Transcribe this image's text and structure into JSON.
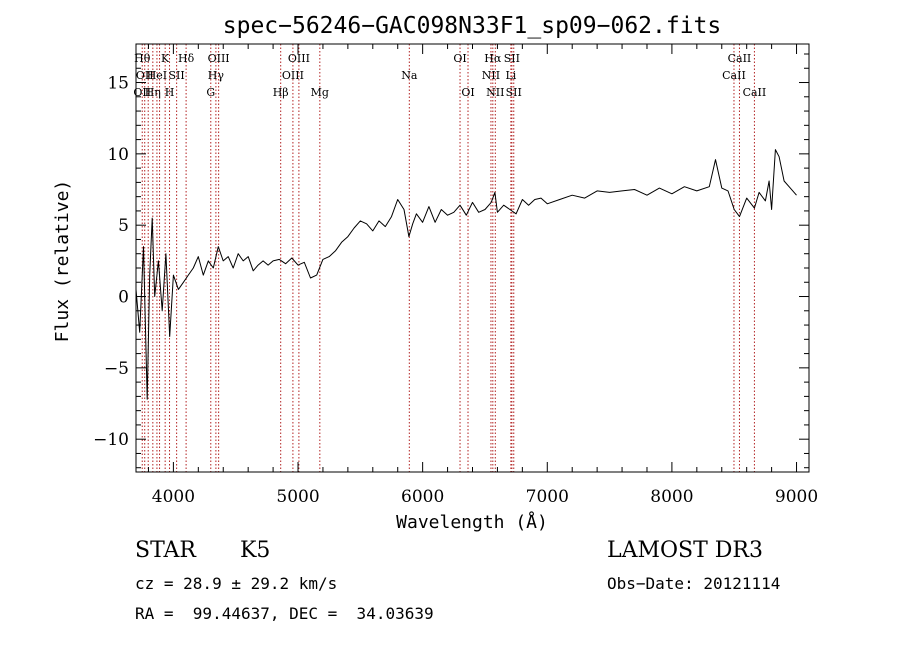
{
  "chart_data": {
    "type": "line",
    "title": "spec−56246−GAC098N33F1_sp09−062.fits",
    "xlabel": "Wavelength (Å)",
    "ylabel": "Flux (relative)",
    "xlim": [
      3700,
      9100
    ],
    "ylim": [
      -12.3,
      17.7
    ],
    "xticks": [
      4000,
      5000,
      6000,
      7000,
      8000,
      9000
    ],
    "yticks": [
      -10,
      -5,
      0,
      5,
      10,
      15
    ],
    "ytick_labels": [
      "−10",
      "−5",
      "0",
      "5",
      "10",
      "15"
    ],
    "grid": false,
    "series": [
      {
        "x": [
          3700,
          3730,
          3760,
          3790,
          3810,
          3830,
          3850,
          3880,
          3910,
          3940,
          3970,
          4000,
          4040,
          4080,
          4120,
          4160,
          4200,
          4240,
          4280,
          4320,
          4360,
          4400,
          4440,
          4480,
          4520,
          4560,
          4600,
          4640,
          4680,
          4720,
          4760,
          4800,
          4850,
          4900,
          4950,
          5000,
          5050,
          5100,
          5150,
          5200,
          5250,
          5300,
          5350,
          5400,
          5450,
          5500,
          5550,
          5600,
          5650,
          5700,
          5750,
          5800,
          5850,
          5890,
          5920,
          5950,
          6000,
          6050,
          6100,
          6150,
          6200,
          6250,
          6300,
          6350,
          6400,
          6450,
          6500,
          6550,
          6580,
          6600,
          6650,
          6700,
          6750,
          6800,
          6850,
          6900,
          6950,
          7000,
          7100,
          7200,
          7300,
          7400,
          7500,
          7600,
          7700,
          7800,
          7900,
          8000,
          8100,
          8200,
          8300,
          8350,
          8400,
          8450,
          8500,
          8542,
          8600,
          8662,
          8700,
          8750,
          8780,
          8800,
          8830,
          8860,
          8900,
          8950,
          9000
        ],
        "y": [
          0.5,
          -2.5,
          3.5,
          -7.2,
          1.5,
          5.5,
          0,
          2.5,
          -1,
          3,
          -2.8,
          1.5,
          0.5,
          1,
          1.5,
          2,
          2.8,
          1.5,
          2.5,
          2,
          3.5,
          2.5,
          2.8,
          2,
          3,
          2.5,
          2.8,
          1.8,
          2.2,
          2.5,
          2.2,
          2.5,
          2.6,
          2.3,
          2.7,
          2.2,
          2.4,
          1.3,
          1.5,
          2.6,
          2.8,
          3.2,
          3.8,
          4.2,
          4.8,
          5.3,
          5.1,
          4.6,
          5.3,
          4.9,
          5.6,
          6.8,
          6.1,
          4.2,
          5.1,
          5.8,
          5.2,
          6.3,
          5.2,
          6.1,
          5.7,
          5.9,
          6.4,
          5.7,
          6.6,
          5.9,
          6.1,
          6.6,
          7.3,
          5.9,
          6.4,
          6.1,
          5.8,
          6.8,
          6.4,
          6.8,
          6.9,
          6.5,
          6.8,
          7.1,
          6.9,
          7.4,
          7.3,
          7.4,
          7.5,
          7.1,
          7.6,
          7.2,
          7.7,
          7.4,
          7.7,
          9.6,
          7.6,
          7.4,
          6.1,
          5.6,
          6.9,
          6.2,
          7.3,
          6.7,
          8.1,
          6.1,
          10.3,
          9.8,
          8.1,
          7.6,
          7.1
        ]
      }
    ],
    "lines": [
      {
        "x": 3750,
        "rows": [
          1,
          3
        ],
        "labels": [
          "Hθ",
          "OII"
        ]
      },
      {
        "x": 3770,
        "rows": [
          2
        ],
        "labels": [
          "OII"
        ]
      },
      {
        "x": 3798,
        "rows": [],
        "labels": []
      },
      {
        "x": 3835,
        "rows": [
          3
        ],
        "labels": [
          "Hη"
        ]
      },
      {
        "x": 3868,
        "rows": [
          2
        ],
        "labels": [
          "HeI"
        ]
      },
      {
        "x": 3889,
        "rows": [],
        "labels": []
      },
      {
        "x": 3934,
        "rows": [
          1
        ],
        "labels": [
          "K"
        ]
      },
      {
        "x": 3969,
        "rows": [
          3
        ],
        "labels": [
          "H"
        ]
      },
      {
        "x": 4026,
        "rows": [
          2
        ],
        "labels": [
          "SII"
        ]
      },
      {
        "x": 4102,
        "rows": [
          1
        ],
        "labels": [
          "Hδ"
        ]
      },
      {
        "x": 4300,
        "rows": [
          3
        ],
        "labels": [
          "G"
        ]
      },
      {
        "x": 4341,
        "rows": [
          2
        ],
        "labels": [
          "Hγ"
        ]
      },
      {
        "x": 4363,
        "rows": [
          1
        ],
        "labels": [
          "OIII"
        ]
      },
      {
        "x": 4861,
        "rows": [
          3
        ],
        "labels": [
          "Hβ"
        ]
      },
      {
        "x": 4959,
        "rows": [
          2
        ],
        "labels": [
          "OIII"
        ]
      },
      {
        "x": 5007,
        "rows": [
          1
        ],
        "labels": [
          "OIII"
        ]
      },
      {
        "x": 5175,
        "rows": [
          3
        ],
        "labels": [
          "Mg"
        ]
      },
      {
        "x": 5893,
        "rows": [
          2
        ],
        "labels": [
          "Na"
        ]
      },
      {
        "x": 6300,
        "rows": [
          1
        ],
        "labels": [
          "OI"
        ]
      },
      {
        "x": 6364,
        "rows": [
          3
        ],
        "labels": [
          "OI"
        ]
      },
      {
        "x": 6548,
        "rows": [
          2
        ],
        "labels": [
          "NII"
        ]
      },
      {
        "x": 6563,
        "rows": [
          1
        ],
        "labels": [
          "Hα"
        ]
      },
      {
        "x": 6583,
        "rows": [
          3
        ],
        "labels": [
          "NII"
        ]
      },
      {
        "x": 6708,
        "rows": [
          2
        ],
        "labels": [
          "Li"
        ]
      },
      {
        "x": 6716,
        "rows": [
          1
        ],
        "labels": [
          "SII"
        ]
      },
      {
        "x": 6731,
        "rows": [
          3
        ],
        "labels": [
          "SII"
        ]
      },
      {
        "x": 8498,
        "rows": [
          2
        ],
        "labels": [
          "CaII"
        ]
      },
      {
        "x": 8542,
        "rows": [
          1
        ],
        "labels": [
          "CaII"
        ]
      },
      {
        "x": 8662,
        "rows": [
          3
        ],
        "labels": [
          "CaII"
        ]
      }
    ]
  },
  "info": {
    "class": "STAR",
    "subclass": "K5",
    "survey": "LAMOST DR3",
    "cz": "cz = 28.9 ± 29.2 km/s",
    "obs_date": "Obs−Date: 20121114",
    "radec": "RA =  99.44637, DEC =  34.03639"
  }
}
